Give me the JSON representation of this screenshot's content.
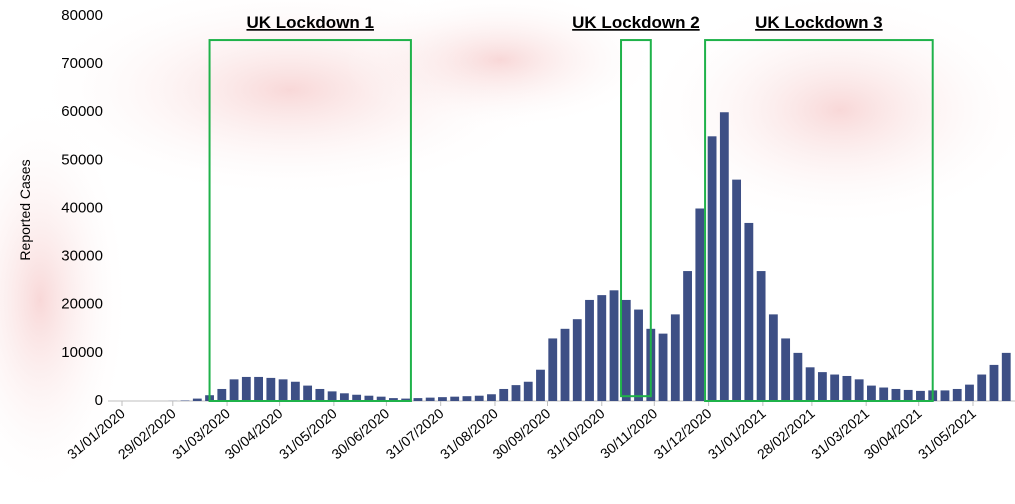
{
  "chart_data": {
    "type": "bar",
    "y_label": "Reported Cases",
    "color": "#3d4f85",
    "x": [
      "2020-02-01",
      "2020-02-08",
      "2020-02-15",
      "2020-02-22",
      "2020-02-29",
      "2020-03-07",
      "2020-03-14",
      "2020-03-21",
      "2020-03-28",
      "2020-04-04",
      "2020-04-11",
      "2020-04-18",
      "2020-04-25",
      "2020-05-02",
      "2020-05-09",
      "2020-05-16",
      "2020-05-23",
      "2020-05-30",
      "2020-06-06",
      "2020-06-13",
      "2020-06-20",
      "2020-06-27",
      "2020-07-04",
      "2020-07-11",
      "2020-07-18",
      "2020-07-25",
      "2020-08-01",
      "2020-08-08",
      "2020-08-15",
      "2020-08-22",
      "2020-08-29",
      "2020-09-05",
      "2020-09-12",
      "2020-09-19",
      "2020-09-26",
      "2020-10-03",
      "2020-10-10",
      "2020-10-17",
      "2020-10-24",
      "2020-10-31",
      "2020-11-07",
      "2020-11-14",
      "2020-11-21",
      "2020-11-28",
      "2020-12-05",
      "2020-12-12",
      "2020-12-19",
      "2020-12-26",
      "2021-01-02",
      "2021-01-09",
      "2021-01-16",
      "2021-01-23",
      "2021-01-30",
      "2021-02-06",
      "2021-02-13",
      "2021-02-20",
      "2021-02-27",
      "2021-03-06",
      "2021-03-13",
      "2021-03-20",
      "2021-03-27",
      "2021-04-03",
      "2021-04-10",
      "2021-04-17",
      "2021-04-24",
      "2021-05-01",
      "2021-05-08",
      "2021-05-15",
      "2021-05-22",
      "2021-05-29",
      "2021-06-05",
      "2021-06-12",
      "2021-06-19"
    ],
    "values": [
      0,
      0,
      0,
      0,
      20,
      100,
      500,
      1200,
      2500,
      4500,
      5000,
      5000,
      4800,
      4500,
      4000,
      3200,
      2500,
      2000,
      1600,
      1300,
      1100,
      900,
      600,
      500,
      600,
      700,
      800,
      900,
      1000,
      1100,
      1400,
      2500,
      3300,
      4000,
      6500,
      13000,
      15000,
      17000,
      21000,
      22000,
      23000,
      21000,
      19000,
      15000,
      14000,
      18000,
      27000,
      40000,
      55000,
      60000,
      46000,
      37000,
      27000,
      18000,
      13000,
      10000,
      7000,
      6000,
      5500,
      5200,
      4500,
      3200,
      2800,
      2500,
      2300,
      2100,
      2200,
      2200,
      2500,
      3400,
      5500,
      7500,
      10000
    ],
    "xlim": [
      "2020-01-23",
      "2021-06-24"
    ],
    "xticks": [
      {
        "value": "2020-01-31",
        "label": "31/01/2020"
      },
      {
        "value": "2020-02-29",
        "label": "29/02/2020"
      },
      {
        "value": "2020-03-31",
        "label": "31/03/2020"
      },
      {
        "value": "2020-04-30",
        "label": "30/04/2020"
      },
      {
        "value": "2020-05-31",
        "label": "31/05/2020"
      },
      {
        "value": "2020-06-30",
        "label": "30/06/2020"
      },
      {
        "value": "2020-07-31",
        "label": "31/07/2020"
      },
      {
        "value": "2020-08-31",
        "label": "31/08/2020"
      },
      {
        "value": "2020-09-30",
        "label": "30/09/2020"
      },
      {
        "value": "2020-10-31",
        "label": "31/10/2020"
      },
      {
        "value": "2020-11-30",
        "label": "30/11/2020"
      },
      {
        "value": "2020-12-31",
        "label": "31/12/2020"
      },
      {
        "value": "2021-01-31",
        "label": "31/01/2021"
      },
      {
        "value": "2021-02-28",
        "label": "28/02/2021"
      },
      {
        "value": "2021-03-31",
        "label": "31/03/2021"
      },
      {
        "value": "2021-04-30",
        "label": "30/04/2021"
      },
      {
        "value": "2021-05-31",
        "label": "31/05/2021"
      }
    ],
    "ylim": [
      0,
      80000
    ],
    "yticks": [
      0,
      10000,
      20000,
      30000,
      40000,
      50000,
      60000,
      70000,
      80000
    ],
    "annotations": [
      {
        "label": "UK Lockdown 1",
        "x": [
          "2020-03-21",
          "2020-07-14"
        ],
        "y": [
          0,
          75000
        ]
      },
      {
        "label": "UK Lockdown 2",
        "x": [
          "2020-11-11",
          "2020-11-28"
        ],
        "y": [
          1000,
          75000
        ]
      },
      {
        "label": "UK Lockdown 3",
        "x": [
          "2020-12-29",
          "2021-05-08"
        ],
        "y": [
          0,
          75000
        ]
      }
    ]
  }
}
